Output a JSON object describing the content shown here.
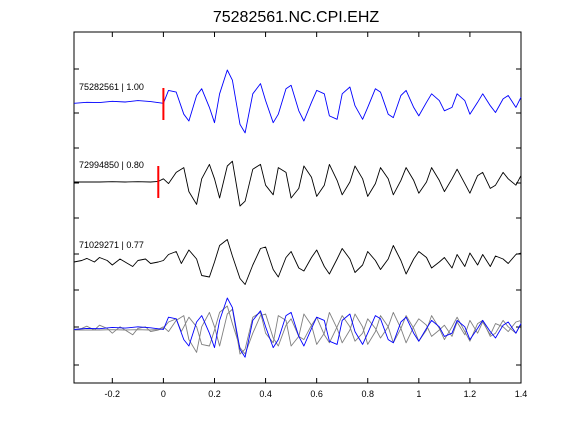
{
  "chart_data": {
    "type": "line",
    "title": "75282561.NC.CPI.EHZ",
    "xlabel": "",
    "ylabel": "",
    "xlim": [
      -0.35,
      1.4
    ],
    "xticks": [
      -0.2,
      0,
      0.2,
      0.4,
      0.6,
      0.8,
      1,
      1.2,
      1.4
    ],
    "xtick_labels": [
      "-0.2",
      "0",
      "0.2",
      "0.4",
      "0.6",
      "0.8",
      "1",
      "1.2",
      "1.4"
    ],
    "grid": false,
    "legend": "none",
    "colors": {
      "primary": "#0000ff",
      "secondary": "#000000",
      "overlay": "#808080",
      "pick": "#ff0000"
    },
    "traces": [
      {
        "label": "75282561 | 1.00",
        "color": "#0000ff",
        "pick_time": 0.0,
        "t": [
          -0.35,
          -0.3,
          -0.25,
          -0.2,
          -0.15,
          -0.1,
          -0.05,
          0.0,
          0.02,
          0.05,
          0.08,
          0.1,
          0.13,
          0.15,
          0.18,
          0.2,
          0.22,
          0.25,
          0.27,
          0.3,
          0.32,
          0.35,
          0.38,
          0.4,
          0.43,
          0.45,
          0.48,
          0.5,
          0.53,
          0.55,
          0.58,
          0.6,
          0.63,
          0.65,
          0.68,
          0.7,
          0.73,
          0.75,
          0.78,
          0.8,
          0.83,
          0.85,
          0.88,
          0.9,
          0.93,
          0.95,
          0.98,
          1.0,
          1.03,
          1.05,
          1.08,
          1.1,
          1.13,
          1.15,
          1.18,
          1.2,
          1.23,
          1.25,
          1.28,
          1.3,
          1.33,
          1.35,
          1.38,
          1.4
        ],
        "amp": [
          0.02,
          0.05,
          0.04,
          0.08,
          0.06,
          0.1,
          0.07,
          0.02,
          0.4,
          0.35,
          -0.3,
          -0.5,
          0.25,
          0.45,
          -0.1,
          -0.55,
          0.3,
          1.0,
          0.7,
          -0.6,
          -0.85,
          0.3,
          0.6,
          0.1,
          -0.55,
          -0.3,
          0.45,
          0.55,
          -0.2,
          -0.5,
          0.05,
          0.4,
          0.3,
          -0.35,
          -0.45,
          0.3,
          0.5,
          -0.05,
          -0.45,
          -0.1,
          0.45,
          0.35,
          -0.3,
          -0.4,
          0.25,
          0.4,
          -0.1,
          -0.35,
          0.05,
          0.3,
          0.1,
          -0.2,
          -0.1,
          0.3,
          0.1,
          -0.3,
          0.05,
          0.3,
          -0.05,
          -0.25,
          0.15,
          0.25,
          -0.1,
          0.2
        ]
      },
      {
        "label": "72994850 | 0.80",
        "color": "#000000",
        "pick_time": -0.02,
        "t": [
          -0.35,
          -0.3,
          -0.25,
          -0.2,
          -0.15,
          -0.1,
          -0.05,
          -0.02,
          0.0,
          0.02,
          0.05,
          0.08,
          0.1,
          0.13,
          0.15,
          0.18,
          0.2,
          0.22,
          0.25,
          0.27,
          0.3,
          0.32,
          0.35,
          0.38,
          0.4,
          0.43,
          0.45,
          0.48,
          0.5,
          0.53,
          0.55,
          0.58,
          0.6,
          0.63,
          0.65,
          0.68,
          0.7,
          0.73,
          0.75,
          0.78,
          0.8,
          0.83,
          0.85,
          0.88,
          0.9,
          0.93,
          0.95,
          0.98,
          1.0,
          1.03,
          1.05,
          1.08,
          1.1,
          1.13,
          1.15,
          1.18,
          1.2,
          1.23,
          1.25,
          1.28,
          1.3,
          1.33,
          1.35,
          1.38,
          1.4
        ],
        "amp": [
          0.0,
          0.0,
          0.0,
          0.01,
          0.0,
          0.01,
          0.0,
          0.02,
          0.1,
          -0.05,
          0.3,
          0.45,
          -0.3,
          -0.7,
          0.1,
          0.55,
          0.1,
          -0.5,
          0.5,
          0.65,
          -0.75,
          -0.6,
          0.4,
          0.55,
          -0.1,
          -0.4,
          0.45,
          0.3,
          -0.5,
          -0.2,
          0.5,
          0.15,
          -0.45,
          -0.1,
          0.55,
          0.05,
          -0.4,
          0.0,
          0.5,
          0.1,
          -0.45,
          -0.05,
          0.45,
          0.1,
          -0.4,
          0.05,
          0.45,
          0.05,
          -0.35,
          0.0,
          0.45,
          0.05,
          -0.3,
          0.1,
          0.4,
          -0.05,
          -0.35,
          0.2,
          0.3,
          -0.2,
          -0.1,
          0.3,
          0.1,
          -0.1,
          0.2
        ]
      },
      {
        "label": "71029271 | 0.77",
        "color": "#000000",
        "pick_time": null,
        "t": [
          -0.35,
          -0.32,
          -0.3,
          -0.27,
          -0.25,
          -0.22,
          -0.2,
          -0.17,
          -0.15,
          -0.12,
          -0.1,
          -0.07,
          -0.05,
          -0.02,
          0.0,
          0.02,
          0.05,
          0.07,
          0.1,
          0.13,
          0.15,
          0.18,
          0.2,
          0.22,
          0.25,
          0.27,
          0.3,
          0.32,
          0.35,
          0.38,
          0.4,
          0.43,
          0.45,
          0.48,
          0.5,
          0.53,
          0.55,
          0.58,
          0.6,
          0.63,
          0.65,
          0.68,
          0.7,
          0.73,
          0.75,
          0.78,
          0.8,
          0.83,
          0.85,
          0.88,
          0.9,
          0.93,
          0.95,
          0.98,
          1.0,
          1.03,
          1.05,
          1.08,
          1.1,
          1.13,
          1.15,
          1.18,
          1.2,
          1.23,
          1.25,
          1.28,
          1.3,
          1.33,
          1.35,
          1.38,
          1.4
        ],
        "amp": [
          0.0,
          0.05,
          0.12,
          0.0,
          0.15,
          0.05,
          -0.1,
          0.1,
          0.0,
          -0.15,
          0.05,
          0.1,
          -0.05,
          0.0,
          0.05,
          0.25,
          0.35,
          -0.05,
          0.4,
          0.1,
          -0.45,
          -0.5,
          0.0,
          0.55,
          0.75,
          0.2,
          -0.55,
          -0.75,
          -0.1,
          0.45,
          0.5,
          -0.25,
          -0.5,
          0.15,
          0.35,
          -0.2,
          -0.3,
          0.15,
          0.4,
          -0.15,
          -0.4,
          0.1,
          0.45,
          0.1,
          -0.35,
          -0.1,
          0.35,
          0.05,
          -0.25,
          0.1,
          0.55,
          0.05,
          -0.4,
          0.1,
          0.35,
          0.15,
          -0.2,
          0.0,
          0.15,
          -0.2,
          0.25,
          -0.15,
          0.3,
          -0.1,
          0.25,
          -0.15,
          0.2,
          0.1,
          -0.05,
          0.25,
          0.3
        ]
      }
    ],
    "overlay": {
      "description_rows": 1,
      "series": [
        {
          "ref": 0,
          "color": "#0000ff"
        },
        {
          "ref": 1,
          "color": "#808080"
        },
        {
          "ref": 2,
          "color": "#808080"
        }
      ]
    }
  }
}
